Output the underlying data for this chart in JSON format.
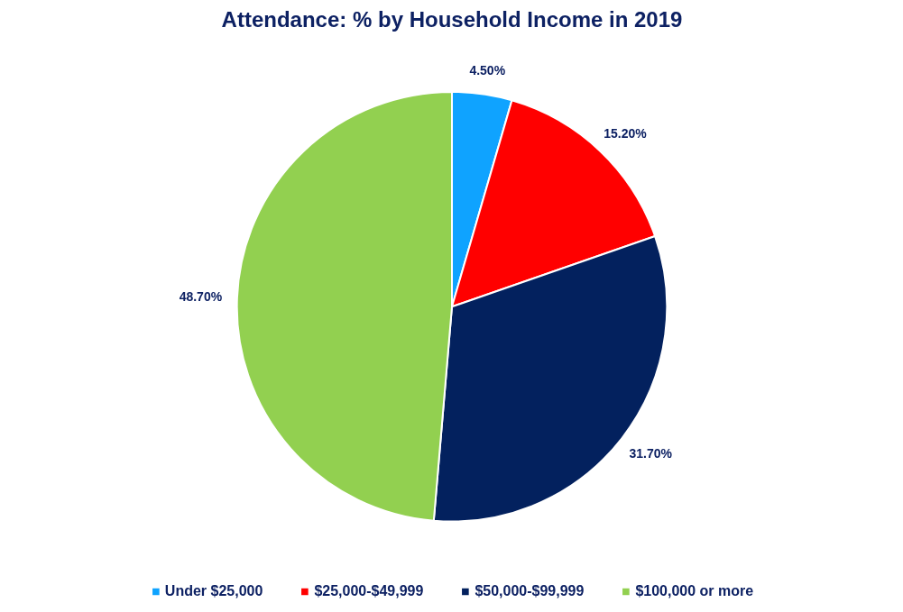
{
  "chart_data": {
    "type": "pie",
    "title": "Attendance: % by Household Income in 2019",
    "categories": [
      "Under $25,000",
      "$25,000-$49,999",
      "$50,000-$99,999",
      "$100,000 or more"
    ],
    "values": [
      4.5,
      15.2,
      31.7,
      48.7
    ],
    "colors": [
      "#0fa3ff",
      "#ff0000",
      "#03215e",
      "#92d050"
    ],
    "value_labels": [
      "4.50%",
      "15.20%",
      "31.70%",
      "48.70%"
    ],
    "legend": "bottom"
  }
}
